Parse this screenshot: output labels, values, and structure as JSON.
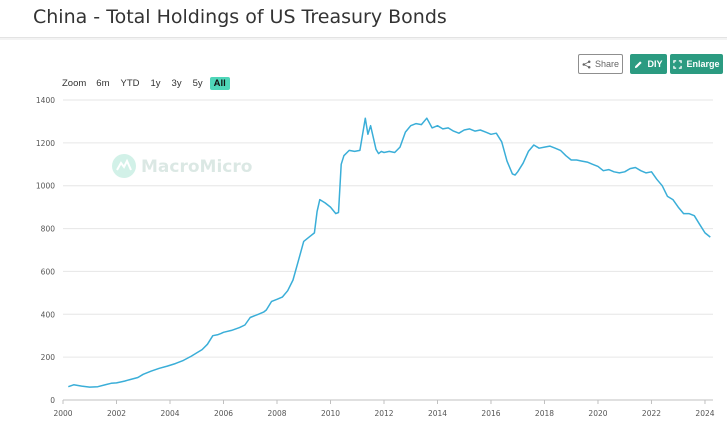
{
  "header": {
    "title": "China - Total Holdings of US Treasury Bonds"
  },
  "toolbar": {
    "share_label": "Share",
    "diy_label": "DIY",
    "enlarge_label": "Enlarge"
  },
  "zoom": {
    "label": "Zoom",
    "options": [
      "6m",
      "YTD",
      "1y",
      "3y",
      "5y",
      "All"
    ],
    "active": "All"
  },
  "watermark": {
    "text": "MacroMicro"
  },
  "colors": {
    "line": "#3aaed8",
    "accent": "#2b9b81",
    "zoom_active": "#4fd6b9",
    "grid": "#e6e6e6"
  },
  "chart_data": {
    "type": "line",
    "title": "China - Total Holdings of US Treasury Bonds",
    "xlabel": "",
    "ylabel": "",
    "xlim": [
      2000,
      2024.3
    ],
    "ylim": [
      0,
      1400
    ],
    "x_ticks": [
      "2000",
      "2002",
      "2004",
      "2006",
      "2008",
      "2010",
      "2012",
      "2014",
      "2016",
      "2018",
      "2020",
      "2022",
      "2024"
    ],
    "y_ticks": [
      "0",
      "200",
      "400",
      "600",
      "800",
      "1000",
      "1200",
      "1400"
    ],
    "grid": true,
    "series": [
      {
        "x": [
          2000.2,
          2000.4,
          2000.7,
          2001.0,
          2001.3,
          2001.6,
          2001.8,
          2002.0,
          2002.3,
          2002.5,
          2002.8,
          2003.0,
          2003.3,
          2003.6,
          2003.9,
          2004.2,
          2004.5,
          2004.8,
          2005.0,
          2005.2,
          2005.4,
          2005.6,
          2005.8,
          2005.9,
          2006.0,
          2006.3,
          2006.6,
          2006.8,
          2007.0,
          2007.3,
          2007.5,
          2007.6,
          2007.8,
          2008.0,
          2008.2,
          2008.4,
          2008.6,
          2008.8,
          2009.0,
          2009.2,
          2009.4,
          2009.5,
          2009.6,
          2009.8,
          2010.0,
          2010.2,
          2010.3,
          2010.4,
          2010.5,
          2010.7,
          2010.9,
          2011.1,
          2011.3,
          2011.4,
          2011.5,
          2011.7,
          2011.8,
          2011.9,
          2012.0,
          2012.2,
          2012.4,
          2012.6,
          2012.8,
          2013.0,
          2013.2,
          2013.4,
          2013.6,
          2013.8,
          2014.0,
          2014.2,
          2014.4,
          2014.6,
          2014.8,
          2015.0,
          2015.2,
          2015.4,
          2015.6,
          2015.8,
          2016.0,
          2016.2,
          2016.4,
          2016.6,
          2016.8,
          2016.9,
          2017.0,
          2017.2,
          2017.4,
          2017.6,
          2017.8,
          2018.0,
          2018.2,
          2018.4,
          2018.6,
          2018.8,
          2019.0,
          2019.2,
          2019.4,
          2019.6,
          2019.8,
          2020.0,
          2020.2,
          2020.4,
          2020.6,
          2020.8,
          2021.0,
          2021.2,
          2021.4,
          2021.6,
          2021.8,
          2022.0,
          2022.2,
          2022.4,
          2022.6,
          2022.8,
          2023.0,
          2023.2,
          2023.4,
          2023.6,
          2023.8,
          2024.0,
          2024.2
        ],
        "y": [
          62,
          71,
          65,
          60,
          62,
          72,
          78,
          80,
          88,
          95,
          105,
          120,
          135,
          148,
          158,
          170,
          185,
          205,
          220,
          235,
          260,
          300,
          305,
          310,
          316,
          325,
          338,
          350,
          385,
          400,
          410,
          420,
          460,
          470,
          480,
          510,
          560,
          650,
          740,
          760,
          780,
          880,
          935,
          920,
          900,
          870,
          875,
          1100,
          1140,
          1165,
          1160,
          1165,
          1315,
          1240,
          1280,
          1170,
          1150,
          1160,
          1155,
          1160,
          1155,
          1180,
          1250,
          1280,
          1290,
          1285,
          1315,
          1270,
          1280,
          1265,
          1270,
          1255,
          1245,
          1260,
          1265,
          1255,
          1260,
          1250,
          1240,
          1245,
          1205,
          1115,
          1055,
          1050,
          1065,
          1105,
          1160,
          1190,
          1175,
          1180,
          1185,
          1175,
          1165,
          1140,
          1120,
          1120,
          1115,
          1110,
          1100,
          1090,
          1070,
          1075,
          1065,
          1060,
          1065,
          1080,
          1085,
          1070,
          1060,
          1065,
          1030,
          1000,
          950,
          935,
          900,
          870,
          870,
          860,
          820,
          780,
          760
        ]
      }
    ]
  }
}
